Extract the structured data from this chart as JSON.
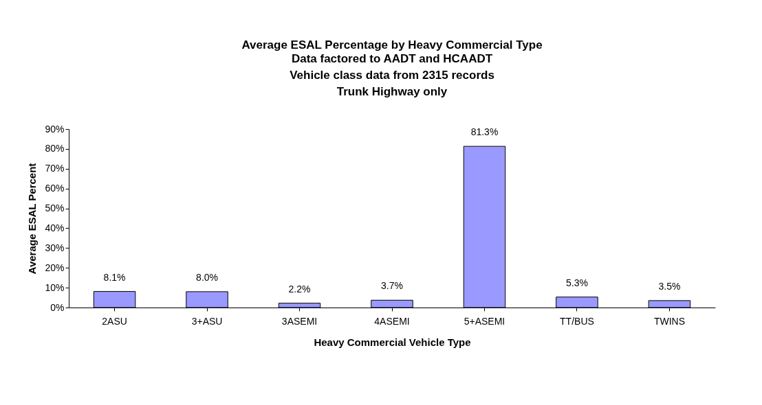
{
  "chart_data": {
    "type": "bar",
    "title": "Average ESAL Percentage by Heavy Commercial Type",
    "subtitle": "Data factored to AADT and HCAADT\nVehicle class data from 2315 records\nTrunk Highway only",
    "xlabel": "Heavy Commercial Vehicle Type",
    "ylabel": "Average ESAL Percent",
    "categories": [
      "2ASU",
      "3+ASU",
      "3ASEMI",
      "4ASEMI",
      "5+ASEMI",
      "TT/BUS",
      "TWINS"
    ],
    "values": [
      8.1,
      8.0,
      2.2,
      3.7,
      81.3,
      5.3,
      3.5
    ],
    "value_labels": [
      "8.1%",
      "8.0%",
      "2.2%",
      "3.7%",
      "81.3%",
      "5.3%",
      "3.5%"
    ],
    "color": "#9999ff",
    "ylim": [
      0,
      90
    ],
    "yticks": [
      {
        "value": 0,
        "label": "0%"
      },
      {
        "value": 10,
        "label": "10%"
      },
      {
        "value": 20,
        "label": "20%"
      },
      {
        "value": 30,
        "label": "30%"
      },
      {
        "value": 40,
        "label": "40%"
      },
      {
        "value": 50,
        "label": "50%"
      },
      {
        "value": 60,
        "label": "60%"
      },
      {
        "value": 70,
        "label": "70%"
      },
      {
        "value": 80,
        "label": "80%"
      },
      {
        "value": 90,
        "label": "90%"
      }
    ],
    "grid": false
  }
}
